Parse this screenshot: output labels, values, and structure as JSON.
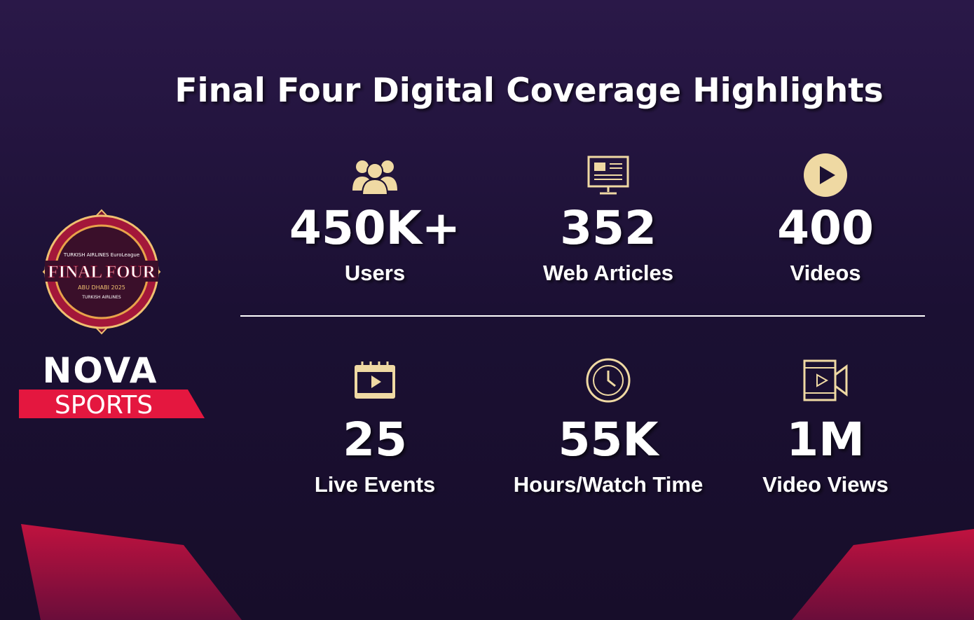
{
  "header": {
    "title": "Final Four Digital Coverage Highlights"
  },
  "logos": {
    "event_top": "TURKISH AIRLINES EuroLeague",
    "event_name": "FINAL FOUR",
    "event_place": "ABU DHABI 2025",
    "event_sponsor": "TURKISH AIRLINES",
    "brand_top": "NOVA",
    "brand_bottom": "SPORTS"
  },
  "stats": [
    {
      "value": "450K+",
      "label": "Users",
      "icon": "users"
    },
    {
      "value": "352",
      "label": "Web Articles",
      "icon": "articles"
    },
    {
      "value": "400",
      "label": "Videos",
      "icon": "play"
    },
    {
      "value": "25",
      "label": "Live Events",
      "icon": "calendar"
    },
    {
      "value": "55K",
      "label": "Hours/Watch Time",
      "icon": "clock"
    },
    {
      "value": "1M",
      "label": "Video Views",
      "icon": "camera"
    }
  ]
}
